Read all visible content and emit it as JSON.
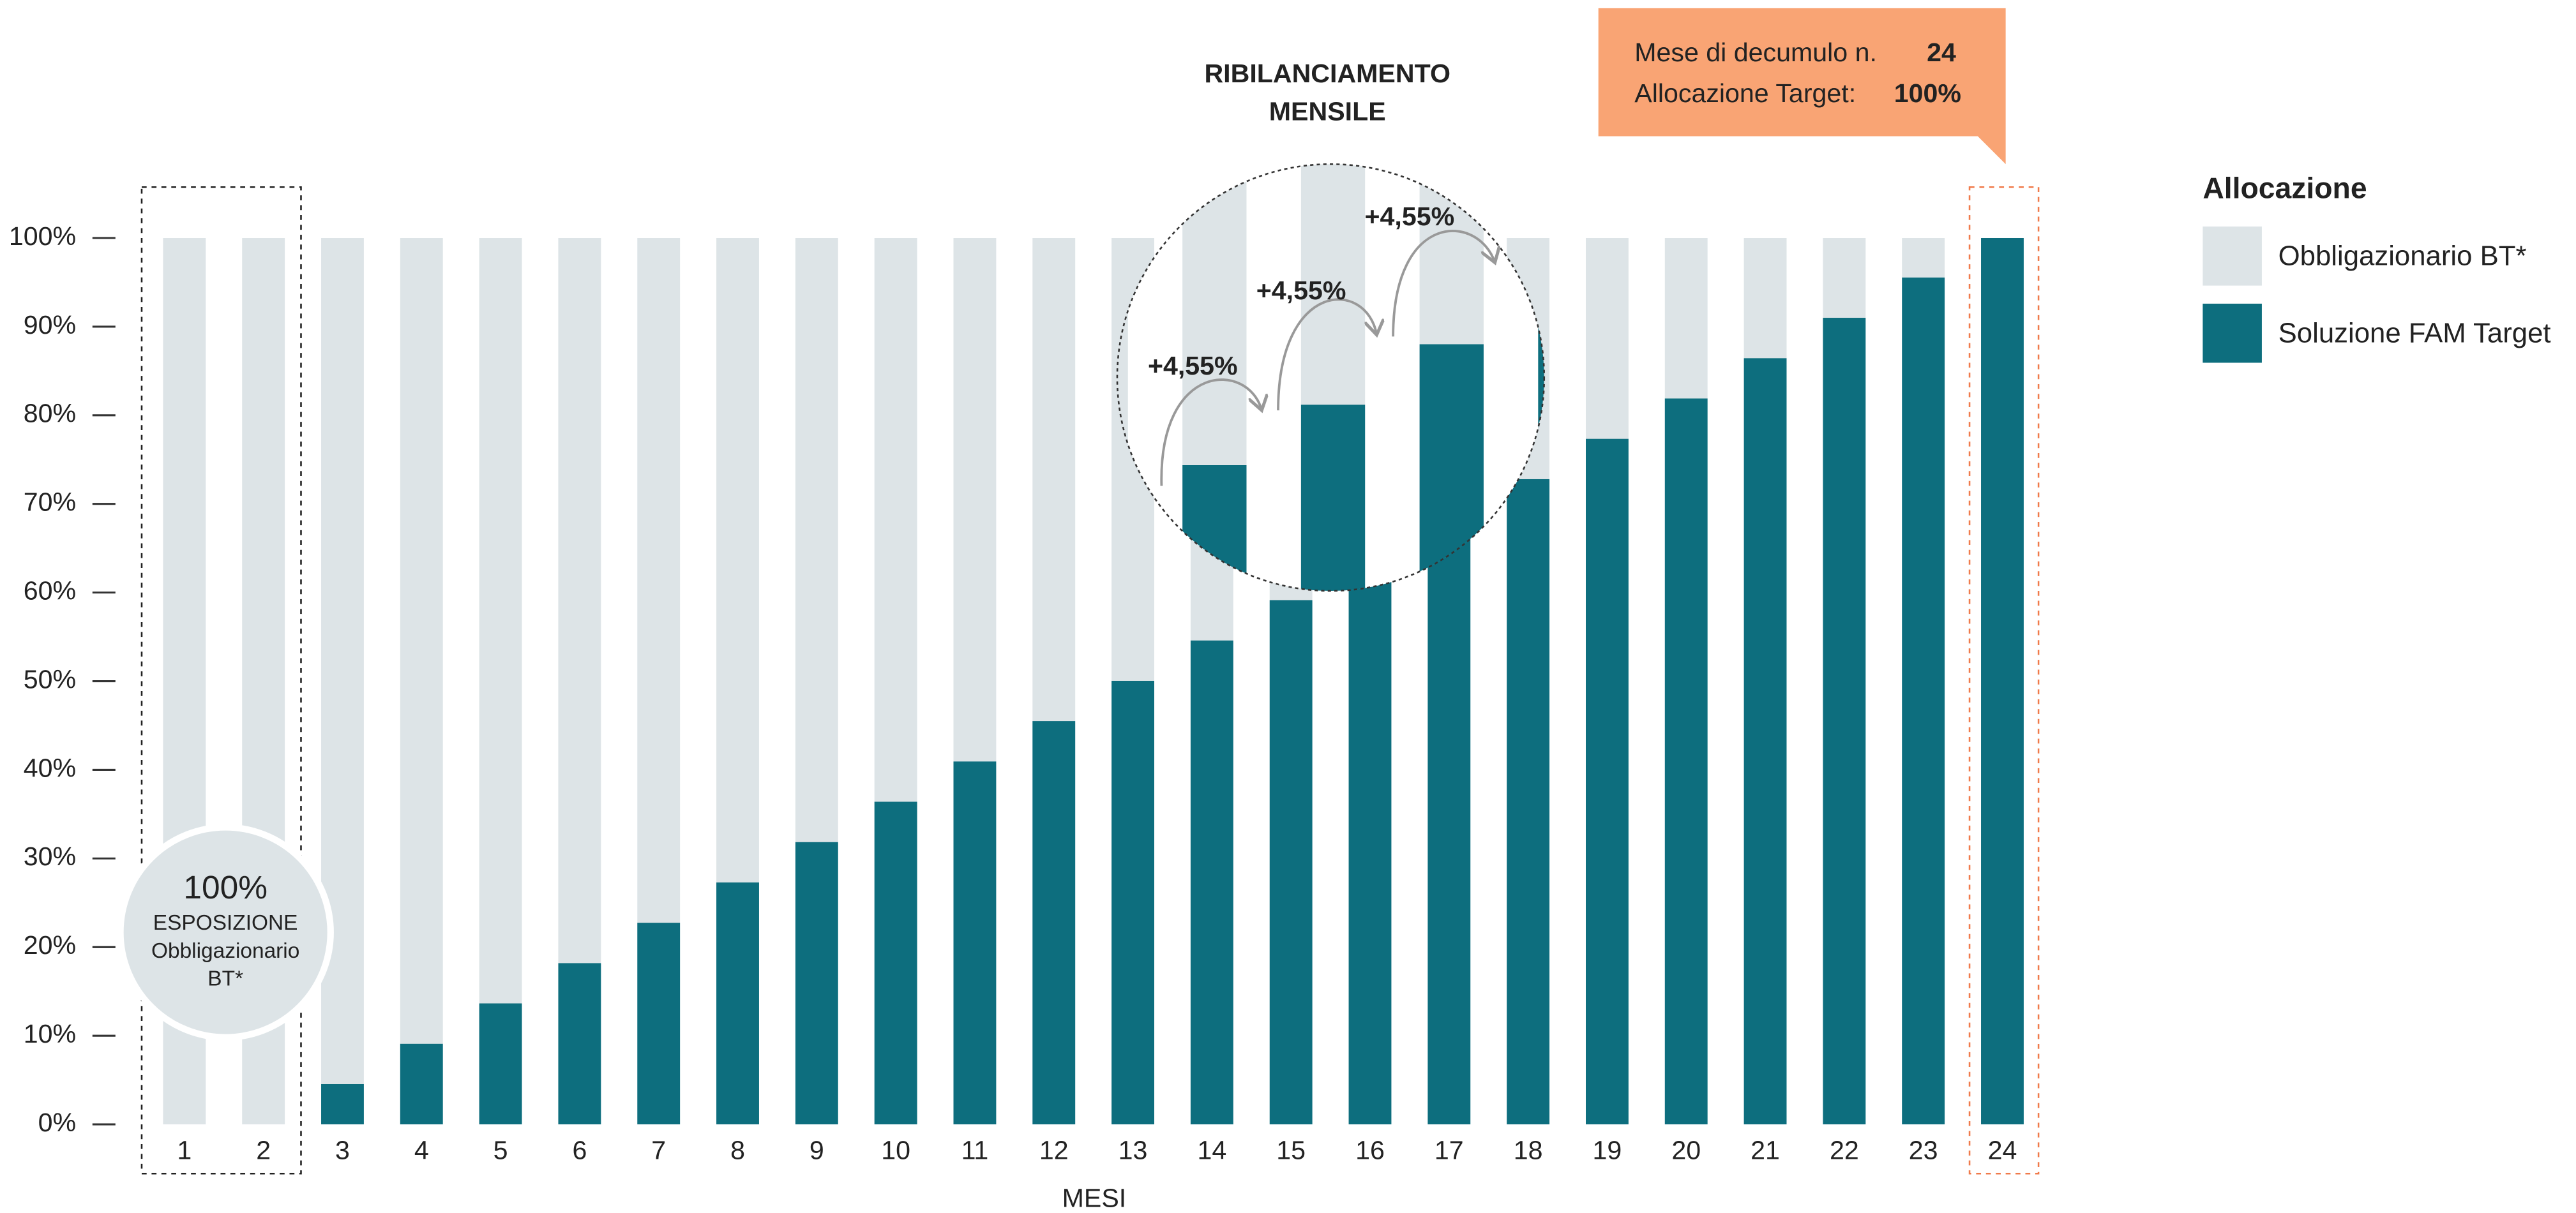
{
  "chart_data": {
    "type": "bar",
    "stacked": true,
    "title": [
      "RIBILANCIAMENTO",
      "MENSILE"
    ],
    "x_label": "MESI",
    "categories": [
      "1",
      "2",
      "3",
      "4",
      "5",
      "6",
      "7",
      "8",
      "9",
      "10",
      "11",
      "12",
      "13",
      "14",
      "15",
      "16",
      "17",
      "18",
      "19",
      "20",
      "21",
      "22",
      "23",
      "24"
    ],
    "ylim": [
      0,
      100
    ],
    "yticks": [
      {
        "value": 0,
        "label": "0%"
      },
      {
        "value": 10,
        "label": "10%"
      },
      {
        "value": 20,
        "label": "20%"
      },
      {
        "value": 30,
        "label": "30%"
      },
      {
        "value": 40,
        "label": "40%"
      },
      {
        "value": 50,
        "label": "50%"
      },
      {
        "value": 60,
        "label": "60%"
      },
      {
        "value": 70,
        "label": "70%"
      },
      {
        "value": 80,
        "label": "80%"
      },
      {
        "value": 90,
        "label": "90%"
      },
      {
        "value": 100,
        "label": "100%"
      }
    ],
    "series": [
      {
        "name": "Soluzione FAM Target",
        "color": "#0d6e7e",
        "values": [
          0,
          0,
          4.55,
          9.1,
          13.65,
          18.2,
          22.75,
          27.3,
          31.85,
          36.4,
          40.95,
          45.5,
          50.05,
          54.6,
          59.15,
          63.7,
          68.25,
          72.8,
          77.35,
          81.9,
          86.45,
          91,
          95.55,
          100
        ]
      },
      {
        "name": "Obbligazionario BT*",
        "color": "#dde4e7",
        "values": [
          100,
          100,
          95.45,
          90.9,
          86.35,
          81.8,
          77.25,
          72.7,
          68.15,
          63.6,
          59.05,
          54.5,
          49.95,
          45.4,
          40.85,
          36.3,
          31.75,
          27.2,
          22.65,
          18.1,
          13.55,
          9,
          4.45,
          0
        ]
      }
    ],
    "legend_title": "Allocazione",
    "legend": "right",
    "callout": {
      "line1_label": "Mese di decumulo n.",
      "line1_value": "24",
      "line2_label": "Allocazione Target:",
      "line2_value": "100%"
    },
    "badge": [
      "100%",
      "ESPOSIZIONE",
      "Obbligazionario",
      "BT*"
    ],
    "increments": [
      "+4,55%",
      "+4,55%",
      "+4,55%"
    ]
  }
}
